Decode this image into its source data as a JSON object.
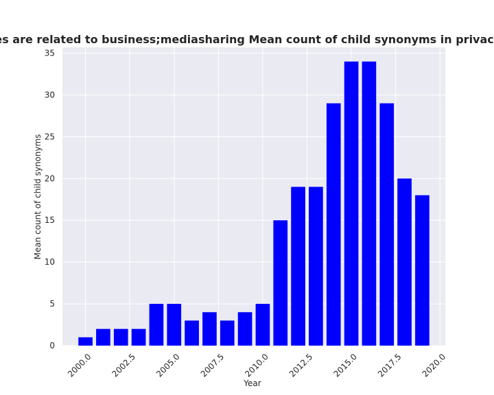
{
  "chart_data": {
    "type": "bar",
    "title": "Categories are related to business;mediasharing Mean count of child synonyms in privacy policies",
    "xlabel": "Year",
    "ylabel": "Mean count of child synonyms",
    "x": [
      2000,
      2001,
      2002,
      2003,
      2004,
      2005,
      2006,
      2007,
      2008,
      2009,
      2010,
      2011,
      2012,
      2013,
      2014,
      2015,
      2016,
      2017,
      2018,
      2019
    ],
    "values": [
      1,
      2,
      2,
      2,
      5,
      5,
      3,
      4,
      3,
      4,
      5,
      15,
      19,
      19,
      29,
      34,
      34,
      29,
      20,
      18
    ],
    "xlim": [
      1998.7,
      2020.3
    ],
    "ylim": [
      0,
      35.7
    ],
    "xticks": [
      2000.0,
      2002.5,
      2005.0,
      2007.5,
      2010.0,
      2012.5,
      2015.0,
      2017.5,
      2020.0
    ],
    "xtick_labels": [
      "2000.0",
      "2002.5",
      "2005.0",
      "2007.5",
      "2010.0",
      "2012.5",
      "2015.0",
      "2017.5",
      "2020.0"
    ],
    "yticks": [
      0,
      5,
      10,
      15,
      20,
      25,
      30,
      35
    ],
    "ytick_labels": [
      "0",
      "5",
      "10",
      "15",
      "20",
      "25",
      "30",
      "35"
    ],
    "grid": true,
    "bar_color": "#0000ff",
    "plot_background": "#eaeaf2",
    "grid_color": "#ffffff"
  }
}
